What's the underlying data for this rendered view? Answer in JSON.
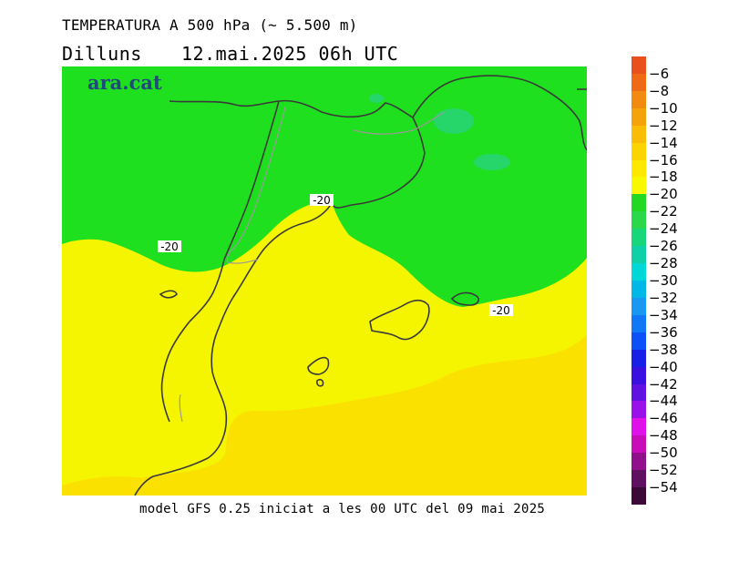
{
  "title": "TEMPERATURA A 500 hPa (~ 5.500 m)",
  "day": "Dilluns",
  "datetime": "12.mai.2025 06h UTC",
  "logo": "ara.cat",
  "caption": "model GFS 0.25 iniciat a les 00 UTC del 09 mai 2025",
  "contour_labels": [
    "-20",
    "-20",
    "-20"
  ],
  "legend": {
    "labels": [
      "−6",
      "−8",
      "−10",
      "−12",
      "−14",
      "−16",
      "−18",
      "−20",
      "−22",
      "−24",
      "−26",
      "−28",
      "−30",
      "−32",
      "−34",
      "−36",
      "−38",
      "−40",
      "−42",
      "−44",
      "−46",
      "−48",
      "−50",
      "−52",
      "−54"
    ],
    "colors": [
      "#e8501c",
      "#ee6a14",
      "#f28a10",
      "#f5a30a",
      "#f9bd06",
      "#fbd402",
      "#fde900",
      "#f8f800",
      "#22d822",
      "#2ad84a",
      "#18d67a",
      "#10d0a8",
      "#00d8d8",
      "#00b8e8",
      "#1898f0",
      "#1078f4",
      "#0c50f8",
      "#1820e8",
      "#3a10e0",
      "#6010e0",
      "#9a10e8",
      "#e010e8",
      "#c80cb8",
      "#90108c",
      "#601060",
      "#3c0838"
    ]
  },
  "fields": {
    "green": "#1ee01e",
    "yellow": "#f5f500",
    "gold": "#fbe100",
    "cold_spot": "#26d66a"
  }
}
